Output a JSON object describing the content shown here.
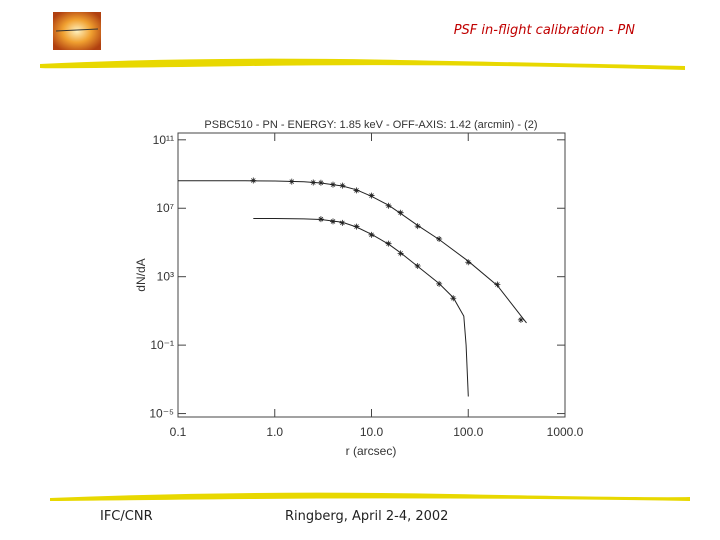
{
  "slide": {
    "title": "PSF in-flight calibration - PN",
    "footer_left": "IFC/CNR",
    "footer_center": "Ringberg, April 2-4, 2002"
  },
  "chart_data": {
    "type": "line",
    "title": "PSBC510 - PN - ENERGY: 1.85 keV - OFF-AXIS: 1.42 (arcmin) - (2)",
    "x_label": "r (arcsec)",
    "y_label": "dN/dA",
    "xscale": "log",
    "yscale": "log",
    "xlim": [
      0.1,
      1000
    ],
    "ylim": [
      6.3e-06,
      250000000000.0
    ],
    "xticks": [
      {
        "value": 0.1,
        "label": "0.1"
      },
      {
        "value": 1,
        "label": "1.0"
      },
      {
        "value": 10,
        "label": "10.0"
      },
      {
        "value": 100,
        "label": "100.0"
      },
      {
        "value": 1000,
        "label": "1000.0"
      }
    ],
    "yticks": [
      {
        "value": 100000000000.0,
        "label": "10¹¹"
      },
      {
        "value": 10000000.0,
        "label": "10⁷"
      },
      {
        "value": 1000,
        "label": "10³"
      },
      {
        "value": 0.1,
        "label": "10⁻¹"
      },
      {
        "value": 1e-05,
        "label": "10⁻⁵"
      }
    ],
    "color": "#222222",
    "series": [
      {
        "style": "line",
        "x": [
          0.1,
          0.5,
          1,
          2,
          3,
          5,
          7,
          10,
          15,
          20,
          30,
          50,
          100,
          200,
          400
        ],
        "values": [
          400000000.0,
          400000000.0,
          390000000.0,
          350000000.0,
          300000000.0,
          200000000.0,
          120000000.0,
          50000000.0,
          15000000.0,
          5000000.0,
          1000000.0,
          150000.0,
          8000,
          300,
          2
        ]
      },
      {
        "style": "points",
        "x": [
          0.6,
          1.5,
          2.5,
          3,
          4,
          5,
          7,
          10,
          15,
          20,
          30,
          50,
          100,
          200,
          350
        ],
        "values": [
          420000000.0,
          360000000.0,
          320000000.0,
          310000000.0,
          240000000.0,
          210000000.0,
          110000000.0,
          55000000.0,
          14000000.0,
          5500000.0,
          900000.0,
          160000.0,
          7000,
          350,
          3
        ]
      },
      {
        "style": "line",
        "x": [
          0.6,
          1,
          2,
          3,
          5,
          7,
          10,
          15,
          20,
          30,
          50,
          70,
          90,
          95,
          100
        ],
        "values": [
          2500000,
          2500000,
          2400000,
          2200000,
          1500000,
          800000,
          300000,
          80000,
          25000,
          4000,
          400,
          60,
          5,
          0.1,
          0.0001
        ]
      },
      {
        "style": "points",
        "x": [
          3,
          4,
          5,
          7,
          10,
          15,
          20,
          30,
          50,
          70
        ],
        "values": [
          2300000,
          1700000,
          1400000,
          850000,
          280000,
          85000,
          23000,
          4200,
          380,
          55
        ]
      }
    ]
  }
}
